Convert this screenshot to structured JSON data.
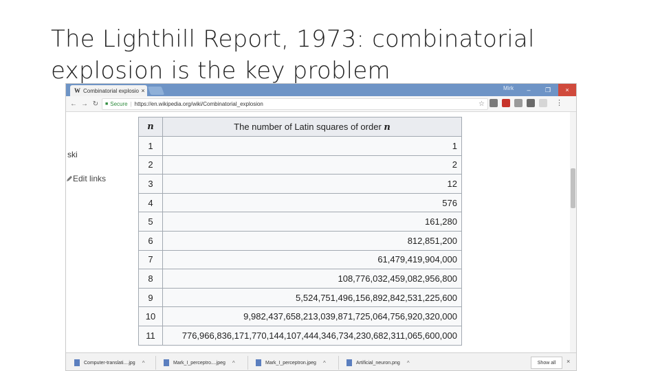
{
  "slide": {
    "title_line1": "The Lighthill Report, 1973: combinatorial",
    "title_line2": "explosion is the key problem"
  },
  "browser": {
    "tab": {
      "favicon": "W",
      "title": "Combinatorial explosion",
      "close": "×"
    },
    "user_chip": "Mirk",
    "window_controls": {
      "minimize": "–",
      "maximize": "❐",
      "close": "×"
    },
    "nav": {
      "back": "←",
      "forward": "→",
      "reload": "↻"
    },
    "address": {
      "secure_label": "Secure",
      "url": "https://en.wikipedia.org/wiki/Combinatorial_explosion",
      "star": "☆"
    },
    "menu": "⋮"
  },
  "page": {
    "sidebar_ski": "ski",
    "sidebar_edit_links": "Edit links",
    "edit_icon": "pencil-icon",
    "table": {
      "header_n": "n",
      "header_value_prefix": "The number of Latin squares of order ",
      "header_value_var": "n",
      "rows": [
        {
          "n": "1",
          "value": "1"
        },
        {
          "n": "2",
          "value": "2"
        },
        {
          "n": "3",
          "value": "12"
        },
        {
          "n": "4",
          "value": "576"
        },
        {
          "n": "5",
          "value": "161,280"
        },
        {
          "n": "6",
          "value": "812,851,200"
        },
        {
          "n": "7",
          "value": "61,479,419,904,000"
        },
        {
          "n": "8",
          "value": "108,776,032,459,082,956,800"
        },
        {
          "n": "9",
          "value": "5,524,751,496,156,892,842,531,225,600"
        },
        {
          "n": "10",
          "value": "9,982,437,658,213,039,871,725,064,756,920,320,000"
        },
        {
          "n": "11",
          "value": "776,966,836,171,770,144,107,444,346,734,230,682,311,065,600,000"
        }
      ]
    }
  },
  "downloads": {
    "items": [
      {
        "name": "Computer-translati....jpg",
        "chevron": "^"
      },
      {
        "name": "Mark_I_perceptro....jpeg",
        "chevron": "^"
      },
      {
        "name": "Mark_I_perceptron.jpeg",
        "chevron": "^"
      },
      {
        "name": "Artificial_neuron.png",
        "chevron": "^"
      }
    ],
    "show_all": "Show all",
    "close": "×"
  },
  "colors": {
    "tabbar": "#6e94c6",
    "secure_green": "#2e8b3d",
    "table_border": "#a2a9b1",
    "header_bg": "#eaecf0"
  }
}
